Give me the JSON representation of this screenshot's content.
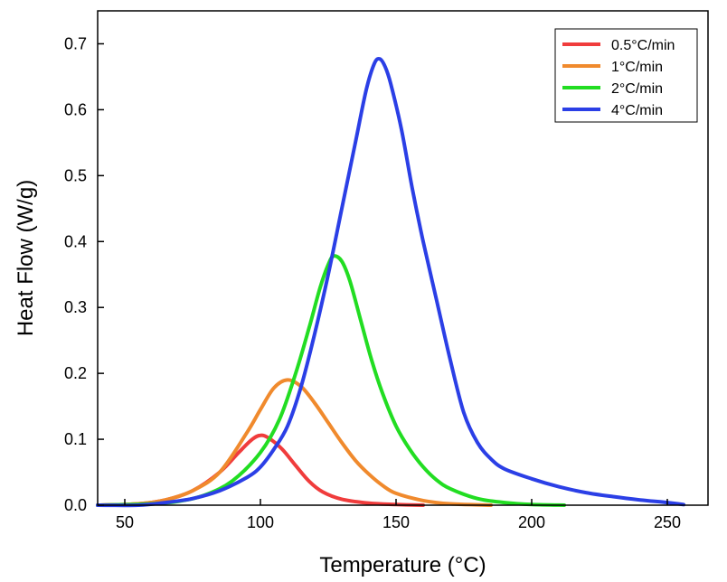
{
  "chart_data": {
    "type": "line",
    "title": "",
    "xlabel": "Temperature (°C)",
    "ylabel": "Heat Flow (W/g)",
    "xlim": [
      40,
      265
    ],
    "ylim": [
      0,
      0.75
    ],
    "x_ticks": [
      50,
      100,
      150,
      200,
      250
    ],
    "x_tick_labels": [
      "50",
      "100",
      "150",
      "200",
      "250"
    ],
    "y_ticks": [
      0.0,
      0.1,
      0.2,
      0.3,
      0.4,
      0.5,
      0.6,
      0.7
    ],
    "y_tick_labels": [
      "0.0",
      "0.1",
      "0.2",
      "0.3",
      "0.4",
      "0.5",
      "0.6",
      "0.7"
    ],
    "grid": false,
    "legend_position": "top-right",
    "series": [
      {
        "name": "0.5°C/min",
        "color": "#f03c3c",
        "points": [
          [
            40,
            0
          ],
          [
            55,
            0.002
          ],
          [
            65,
            0.008
          ],
          [
            75,
            0.022
          ],
          [
            85,
            0.05
          ],
          [
            92,
            0.08
          ],
          [
            97,
            0.1
          ],
          [
            100,
            0.106
          ],
          [
            103,
            0.102
          ],
          [
            108,
            0.085
          ],
          [
            113,
            0.06
          ],
          [
            118,
            0.036
          ],
          [
            123,
            0.02
          ],
          [
            130,
            0.009
          ],
          [
            140,
            0.003
          ],
          [
            150,
            0.001
          ],
          [
            160,
            0
          ]
        ]
      },
      {
        "name": "1°C/min",
        "color": "#f08a2d",
        "points": [
          [
            40,
            0
          ],
          [
            55,
            0.002
          ],
          [
            65,
            0.008
          ],
          [
            75,
            0.022
          ],
          [
            85,
            0.05
          ],
          [
            95,
            0.11
          ],
          [
            100,
            0.145
          ],
          [
            105,
            0.178
          ],
          [
            110,
            0.19
          ],
          [
            115,
            0.18
          ],
          [
            120,
            0.155
          ],
          [
            125,
            0.125
          ],
          [
            130,
            0.095
          ],
          [
            135,
            0.068
          ],
          [
            140,
            0.047
          ],
          [
            145,
            0.03
          ],
          [
            150,
            0.018
          ],
          [
            160,
            0.007
          ],
          [
            170,
            0.002
          ],
          [
            185,
            0
          ]
        ]
      },
      {
        "name": "2°C/min",
        "color": "#22dd22",
        "points": [
          [
            40,
            0
          ],
          [
            60,
            0.002
          ],
          [
            70,
            0.006
          ],
          [
            80,
            0.016
          ],
          [
            90,
            0.038
          ],
          [
            100,
            0.08
          ],
          [
            107,
            0.13
          ],
          [
            113,
            0.2
          ],
          [
            118,
            0.27
          ],
          [
            122,
            0.33
          ],
          [
            125,
            0.365
          ],
          [
            127,
            0.378
          ],
          [
            130,
            0.37
          ],
          [
            133,
            0.34
          ],
          [
            137,
            0.28
          ],
          [
            141,
            0.22
          ],
          [
            145,
            0.17
          ],
          [
            150,
            0.12
          ],
          [
            155,
            0.085
          ],
          [
            160,
            0.058
          ],
          [
            165,
            0.038
          ],
          [
            170,
            0.025
          ],
          [
            180,
            0.01
          ],
          [
            190,
            0.004
          ],
          [
            200,
            0.001
          ],
          [
            212,
            0
          ]
        ]
      },
      {
        "name": "4°C/min",
        "color": "#2b3fe6",
        "points": [
          [
            40,
            0
          ],
          [
            55,
            0
          ],
          [
            65,
            0.004
          ],
          [
            75,
            0.01
          ],
          [
            85,
            0.022
          ],
          [
            95,
            0.042
          ],
          [
            100,
            0.058
          ],
          [
            105,
            0.085
          ],
          [
            110,
            0.12
          ],
          [
            115,
            0.18
          ],
          [
            120,
            0.26
          ],
          [
            125,
            0.35
          ],
          [
            130,
            0.45
          ],
          [
            135,
            0.55
          ],
          [
            139,
            0.63
          ],
          [
            142,
            0.67
          ],
          [
            144,
            0.677
          ],
          [
            146,
            0.665
          ],
          [
            148,
            0.64
          ],
          [
            152,
            0.57
          ],
          [
            156,
            0.48
          ],
          [
            160,
            0.4
          ],
          [
            165,
            0.31
          ],
          [
            170,
            0.22
          ],
          [
            175,
            0.14
          ],
          [
            180,
            0.095
          ],
          [
            185,
            0.07
          ],
          [
            190,
            0.055
          ],
          [
            200,
            0.04
          ],
          [
            210,
            0.028
          ],
          [
            220,
            0.019
          ],
          [
            230,
            0.013
          ],
          [
            240,
            0.008
          ],
          [
            250,
            0.004
          ],
          [
            256,
            0.001
          ]
        ]
      }
    ]
  }
}
